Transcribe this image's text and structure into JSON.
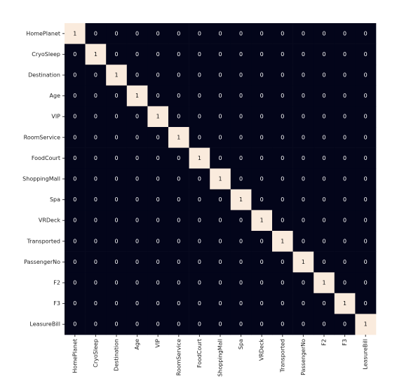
{
  "chart_data": {
    "type": "heatmap",
    "categories": [
      "HomePlanet",
      "CryoSleep",
      "Destination",
      "Age",
      "VIP",
      "RoomService",
      "FoodCourt",
      "ShoppingMall",
      "Spa",
      "VRDeck",
      "Transported",
      "PassengerNo",
      "F2",
      "F3",
      "LeasureBill"
    ],
    "values": [
      [
        1,
        0,
        0,
        0,
        0,
        0,
        0,
        0,
        0,
        0,
        0,
        0,
        0,
        0,
        0
      ],
      [
        0,
        1,
        0,
        0,
        0,
        0,
        0,
        0,
        0,
        0,
        0,
        0,
        0,
        0,
        0
      ],
      [
        0,
        0,
        1,
        0,
        0,
        0,
        0,
        0,
        0,
        0,
        0,
        0,
        0,
        0,
        0
      ],
      [
        0,
        0,
        0,
        1,
        0,
        0,
        0,
        0,
        0,
        0,
        0,
        0,
        0,
        0,
        0
      ],
      [
        0,
        0,
        0,
        0,
        1,
        0,
        0,
        0,
        0,
        0,
        0,
        0,
        0,
        0,
        0
      ],
      [
        0,
        0,
        0,
        0,
        0,
        1,
        0,
        0,
        0,
        0,
        0,
        0,
        0,
        0,
        0
      ],
      [
        0,
        0,
        0,
        0,
        0,
        0,
        1,
        0,
        0,
        0,
        0,
        0,
        0,
        0,
        0
      ],
      [
        0,
        0,
        0,
        0,
        0,
        0,
        0,
        1,
        0,
        0,
        0,
        0,
        0,
        0,
        0
      ],
      [
        0,
        0,
        0,
        0,
        0,
        0,
        0,
        0,
        1,
        0,
        0,
        0,
        0,
        0,
        0
      ],
      [
        0,
        0,
        0,
        0,
        0,
        0,
        0,
        0,
        0,
        1,
        0,
        0,
        0,
        0,
        0
      ],
      [
        0,
        0,
        0,
        0,
        0,
        0,
        0,
        0,
        0,
        0,
        1,
        0,
        0,
        0,
        0
      ],
      [
        0,
        0,
        0,
        0,
        0,
        0,
        0,
        0,
        0,
        0,
        0,
        1,
        0,
        0,
        0
      ],
      [
        0,
        0,
        0,
        0,
        0,
        0,
        0,
        0,
        0,
        0,
        0,
        0,
        1,
        0,
        0
      ],
      [
        0,
        0,
        0,
        0,
        0,
        0,
        0,
        0,
        0,
        0,
        0,
        0,
        0,
        1,
        0
      ],
      [
        0,
        0,
        0,
        0,
        0,
        0,
        0,
        0,
        0,
        0,
        0,
        0,
        0,
        0,
        1
      ]
    ],
    "colors": [
      "#03051a",
      "#faebdd"
    ]
  }
}
